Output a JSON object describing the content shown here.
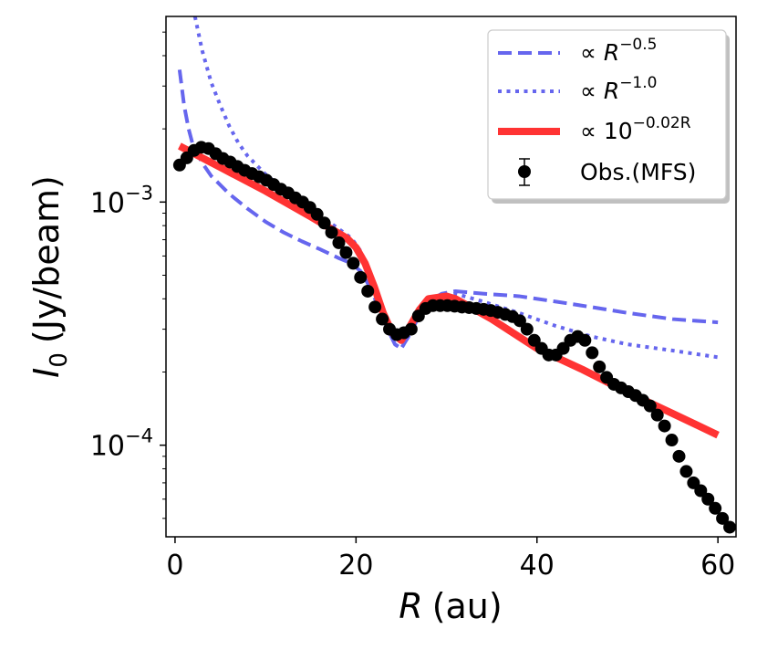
{
  "chart_data": {
    "type": "line",
    "title": "",
    "xlabel": "R (au)",
    "xlabel_symbol": "R",
    "xlabel_unit": "(au)",
    "ylabel": "I0 (Jy/beam)",
    "ylabel_symbol": "I",
    "ylabel_subscript": "0",
    "ylabel_unit": "(Jy/beam)",
    "xlim": [
      -1,
      62
    ],
    "ylim": [
      4.2e-05,
      0.0058
    ],
    "yscale": "log",
    "xticks": [
      0,
      20,
      40,
      60
    ],
    "xtick_labels": [
      "0",
      "20",
      "40",
      "60"
    ],
    "yticks": [
      0.001,
      0.0001
    ],
    "ytick_labels": [
      {
        "base": "10",
        "exp": "−3"
      },
      {
        "base": "10",
        "exp": "−4"
      }
    ],
    "legend_position": "top-right",
    "series": [
      {
        "name": "∝ R^-0.5",
        "legend_prefix": "∝ ",
        "legend_base": "R",
        "legend_exp": "−0.5",
        "style": "dashed",
        "color": "#6666ee",
        "x": [
          0.5,
          1,
          1.5,
          2,
          3,
          4,
          6,
          8,
          10,
          12,
          14,
          16,
          18,
          19.5,
          20.5,
          21.5,
          22.5,
          23.5,
          24.3,
          25,
          25.8,
          26.8,
          28,
          29.5,
          31,
          34,
          38,
          42,
          46,
          50,
          55,
          60
        ],
        "y": [
          0.0035,
          0.0025,
          0.002,
          0.0017,
          0.00145,
          0.00128,
          0.00108,
          0.00094,
          0.00083,
          0.00075,
          0.00069,
          0.00064,
          0.00059,
          0.00056,
          0.00052,
          0.00045,
          0.00037,
          0.0003,
          0.00026,
          0.00025,
          0.00028,
          0.00034,
          0.00039,
          0.00042,
          0.00043,
          0.00042,
          0.00041,
          0.00039,
          0.00037,
          0.00035,
          0.00033,
          0.00032
        ]
      },
      {
        "name": "∝ R^-1.0",
        "legend_prefix": "∝ ",
        "legend_base": "R",
        "legend_exp": "−1.0",
        "style": "dotted",
        "color": "#6666ee",
        "x": [
          2.2,
          3,
          4,
          5,
          6,
          7,
          8,
          10,
          12,
          14,
          16,
          18,
          19.5,
          20.5,
          21.5,
          22.5,
          23.5,
          24.3,
          25,
          25.8,
          26.8,
          28,
          29.5,
          31,
          34,
          38,
          42,
          46,
          50,
          55,
          60
        ],
        "y": [
          0.0058,
          0.0042,
          0.0031,
          0.0025,
          0.00205,
          0.00175,
          0.00155,
          0.0013,
          0.00113,
          0.001,
          0.00088,
          0.00078,
          0.00071,
          0.00063,
          0.00052,
          0.0004,
          0.00031,
          0.00026,
          0.00025,
          0.00028,
          0.00033,
          0.00038,
          0.00041,
          0.00042,
          0.00039,
          0.00035,
          0.00031,
          0.00028,
          0.00026,
          0.000245,
          0.00023
        ]
      },
      {
        "name": "∝ 10^(-0.02R)",
        "legend_prefix": "∝ ",
        "legend_base": "10",
        "legend_exp": "−0.02R",
        "style": "solid",
        "color": "#ff3333",
        "x": [
          0.5,
          5,
          10,
          15,
          19,
          20,
          21,
          22,
          23,
          24,
          25,
          26,
          27,
          28,
          30,
          31,
          35,
          40,
          45,
          50,
          55,
          60
        ],
        "y": [
          0.0017,
          0.00139,
          0.00111,
          0.00087,
          0.00071,
          0.00065,
          0.00056,
          0.00045,
          0.00035,
          0.00029,
          0.00027,
          0.00031,
          0.00036,
          0.0004,
          0.00041,
          0.0004,
          0.00033,
          0.00025,
          0.000205,
          0.000165,
          0.000135,
          0.00011
        ]
      },
      {
        "name": "Obs.(MFS)",
        "style": "markers",
        "color": "#000000",
        "x": [
          0.5,
          1.3,
          2.1,
          2.9,
          3.7,
          4.5,
          5.3,
          6.1,
          6.9,
          7.7,
          8.5,
          9.3,
          10.1,
          10.9,
          11.7,
          12.5,
          13.3,
          14.1,
          14.9,
          15.7,
          16.5,
          17.3,
          18.1,
          18.9,
          19.7,
          20.5,
          21.3,
          22.1,
          22.9,
          23.7,
          24.5,
          25.3,
          26.1,
          26.9,
          27.7,
          28.5,
          29.3,
          30.1,
          30.9,
          31.7,
          32.5,
          33.3,
          34.1,
          34.9,
          35.7,
          36.5,
          37.3,
          38.1,
          38.9,
          39.7,
          40.5,
          41.3,
          42.1,
          42.9,
          43.7,
          44.5,
          45.3,
          46.1,
          46.9,
          47.7,
          48.5,
          49.3,
          50.1,
          50.9,
          51.7,
          52.5,
          53.3,
          54.1,
          54.9,
          55.7,
          56.5,
          57.3,
          58.1,
          58.9,
          59.7,
          60.5,
          61.3
        ],
        "y": [
          0.00142,
          0.00152,
          0.00163,
          0.00168,
          0.00166,
          0.00158,
          0.00151,
          0.00146,
          0.0014,
          0.00135,
          0.00131,
          0.00127,
          0.00123,
          0.00118,
          0.00113,
          0.00109,
          0.00104,
          0.001,
          0.00095,
          0.00089,
          0.00082,
          0.00075,
          0.00068,
          0.00062,
          0.00056,
          0.00049,
          0.00043,
          0.00037,
          0.00033,
          0.0003,
          0.000285,
          0.00029,
          0.0003,
          0.00034,
          0.000365,
          0.000375,
          0.000375,
          0.000375,
          0.000373,
          0.00037,
          0.000368,
          0.000365,
          0.000362,
          0.000358,
          0.000352,
          0.000345,
          0.000338,
          0.000325,
          0.0003,
          0.00027,
          0.00025,
          0.000235,
          0.000235,
          0.00025,
          0.00027,
          0.00028,
          0.00027,
          0.00024,
          0.00021,
          0.00019,
          0.000178,
          0.000172,
          0.000166,
          0.00016,
          0.000153,
          0.000145,
          0.000133,
          0.00012,
          0.000105,
          9e-05,
          7.8e-05,
          7e-05,
          6.5e-05,
          6e-05,
          5.5e-05,
          5e-05,
          4.6e-05
        ]
      }
    ]
  }
}
